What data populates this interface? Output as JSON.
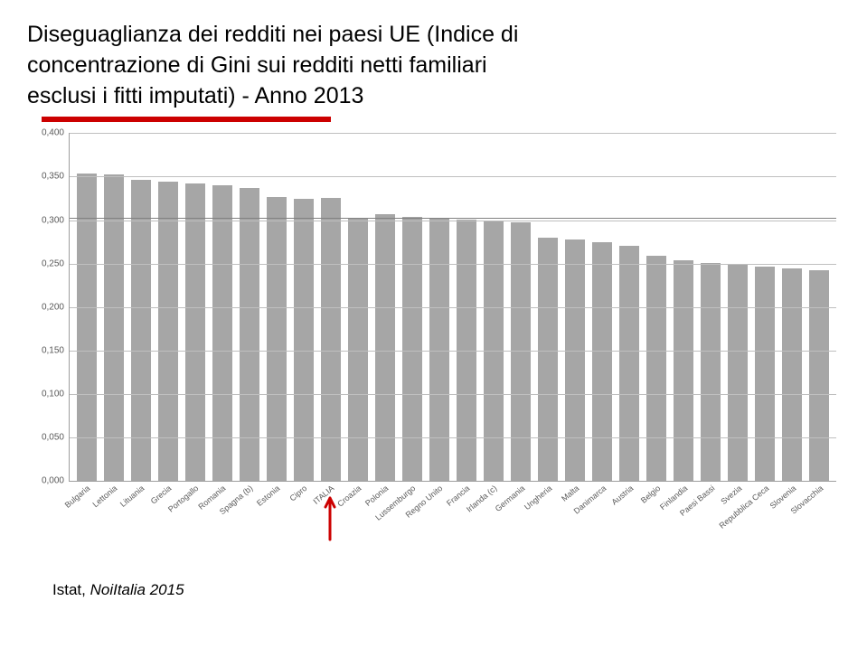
{
  "title_line1": "Diseguaglianza dei redditi nei paesi UE (Indice di",
  "title_line2": "concentrazione di Gini sui redditi netti familiari",
  "title_line3": "esclusi i fitti imputati) - Anno 2013",
  "source_prefix": "Istat,",
  "source_name": " NoiItalia 2015",
  "chart": {
    "type": "bar",
    "ymin": 0.0,
    "ymax": 0.4,
    "ytick_step": 0.05,
    "yticks": [
      "0,000",
      "0,050",
      "0,100",
      "0,150",
      "0,200",
      "0,250",
      "0,300",
      "0,350",
      "0,400"
    ],
    "bar_color": "#a6a6a6",
    "grid_color": "#bfbfbf",
    "background_color": "#ffffff",
    "y_reference_line": 0.303,
    "categories": [
      "Bulgaria",
      "Lettonia",
      "Lituania",
      "Grecia",
      "Portogallo",
      "Romania",
      "Spagna (b)",
      "Estonia",
      "Cipro",
      "ITALIA",
      "Croazia",
      "Polonia",
      "Lussemburgo",
      "Regno Unito",
      "Francia",
      "Irlanda (c)",
      "Germania",
      "Ungheria",
      "Malta",
      "Danimarca",
      "Austria",
      "Belgio",
      "Finlandia",
      "Paesi Bassi",
      "Svezia",
      "Repubblica Ceca",
      "Slovenia",
      "Slovacchia"
    ],
    "values": [
      0.354,
      0.352,
      0.346,
      0.344,
      0.342,
      0.34,
      0.337,
      0.326,
      0.324,
      0.325,
      0.302,
      0.307,
      0.304,
      0.302,
      0.301,
      0.299,
      0.297,
      0.28,
      0.278,
      0.275,
      0.27,
      0.259,
      0.254,
      0.251,
      0.249,
      0.246,
      0.244,
      0.242
    ],
    "arrow_index": 9,
    "arrow_color": "#cc0000",
    "title_fontsize": 25,
    "axis_fontsize": 10,
    "xlabel_fontsize": 9
  }
}
